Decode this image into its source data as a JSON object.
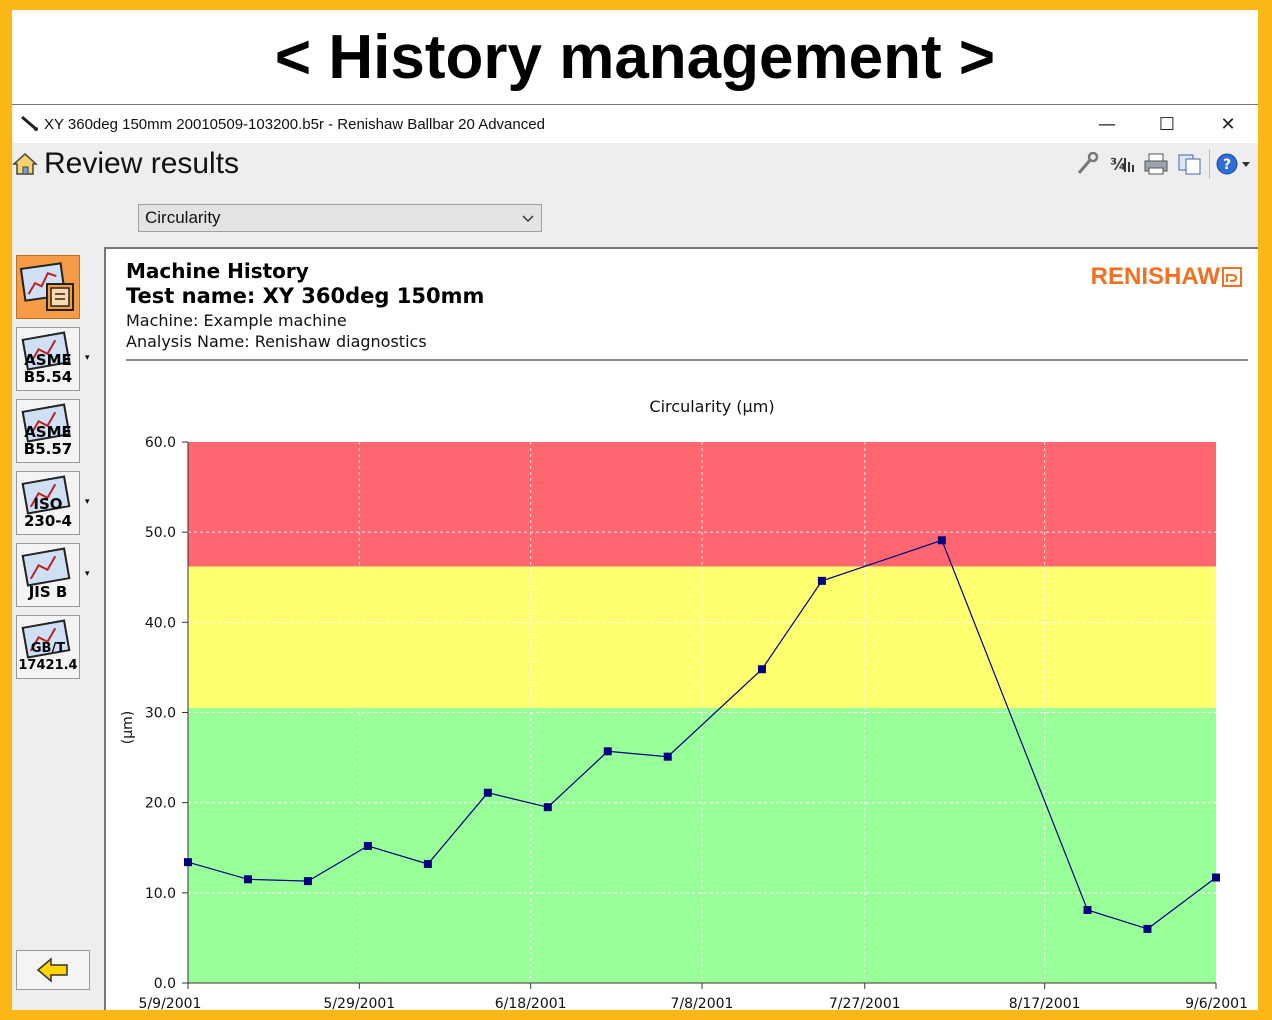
{
  "banner": {
    "title": "< History management >"
  },
  "window": {
    "title": "XY 360deg 150mm 20010509-103200.b5r - Renishaw Ballbar 20 Advanced",
    "minimize": "—",
    "maximize": "☐",
    "close": "✕"
  },
  "toolbar": {
    "page_title": "Review results",
    "icons": [
      "settings-icon",
      "units-icon",
      "print-icon",
      "copy-icon",
      "help-icon"
    ]
  },
  "selector": {
    "value": "Circularity"
  },
  "standards": [
    {
      "name": "machine-history",
      "label": "",
      "active": true,
      "has_dropdown": false
    },
    {
      "name": "asme-b5-54",
      "label": "ASME\nB5.54",
      "active": false,
      "has_dropdown": true
    },
    {
      "name": "asme-b5-57",
      "label": "ASME\nB5.57",
      "active": false,
      "has_dropdown": false
    },
    {
      "name": "iso-230-4",
      "label": "ISO\n230-4",
      "active": false,
      "has_dropdown": true
    },
    {
      "name": "jis-b",
      "label": "JIS B",
      "active": false,
      "has_dropdown": true
    },
    {
      "name": "gb-t-17421-4",
      "label": "GB/T\n17421.4",
      "active": false,
      "has_dropdown": false
    }
  ],
  "report": {
    "heading": "Machine History",
    "test_name": "Test name: XY 360deg 150mm",
    "machine": "Machine: Example machine",
    "analysis": "Analysis Name: Renishaw diagnostics",
    "brand": "RENISHAW"
  },
  "colors": {
    "red_zone": "#ff6670",
    "yellow_zone": "#ffff70",
    "green_zone": "#99ff99",
    "series": "#000080",
    "brand": "#f36f21"
  },
  "chart_data": {
    "type": "line",
    "title": "Circularity (µm)",
    "ylabel": "(µm)",
    "xlabel": "",
    "ylim": [
      0,
      60
    ],
    "yticks": [
      "0.0",
      "10.0",
      "20.0",
      "30.0",
      "40.0",
      "50.0",
      "60.0"
    ],
    "xticks": [
      "5/9/2001",
      "5/29/2001",
      "6/18/2001",
      "7/8/2001",
      "7/27/2001",
      "8/17/2001",
      "9/6/2001"
    ],
    "xlim": [
      "2001-05-09",
      "2001-09-06"
    ],
    "grid": true,
    "zones": [
      {
        "from": 0,
        "to": 30.5,
        "color": "green"
      },
      {
        "from": 30.5,
        "to": 46.2,
        "color": "yellow"
      },
      {
        "from": 46.2,
        "to": 60,
        "color": "red"
      }
    ],
    "series": [
      {
        "x": [
          "2001-05-09",
          "2001-05-16",
          "2001-05-23",
          "2001-05-30",
          "2001-06-06",
          "2001-06-13",
          "2001-06-20",
          "2001-06-27",
          "2001-07-04",
          "2001-07-15",
          "2001-07-22",
          "2001-08-05",
          "2001-08-22",
          "2001-08-29",
          "2001-09-06"
        ],
        "values": [
          13.4,
          11.5,
          11.3,
          15.2,
          13.2,
          21.1,
          19.5,
          25.7,
          25.1,
          34.8,
          44.6,
          49.1,
          8.1,
          6.0,
          11.7
        ]
      }
    ]
  }
}
